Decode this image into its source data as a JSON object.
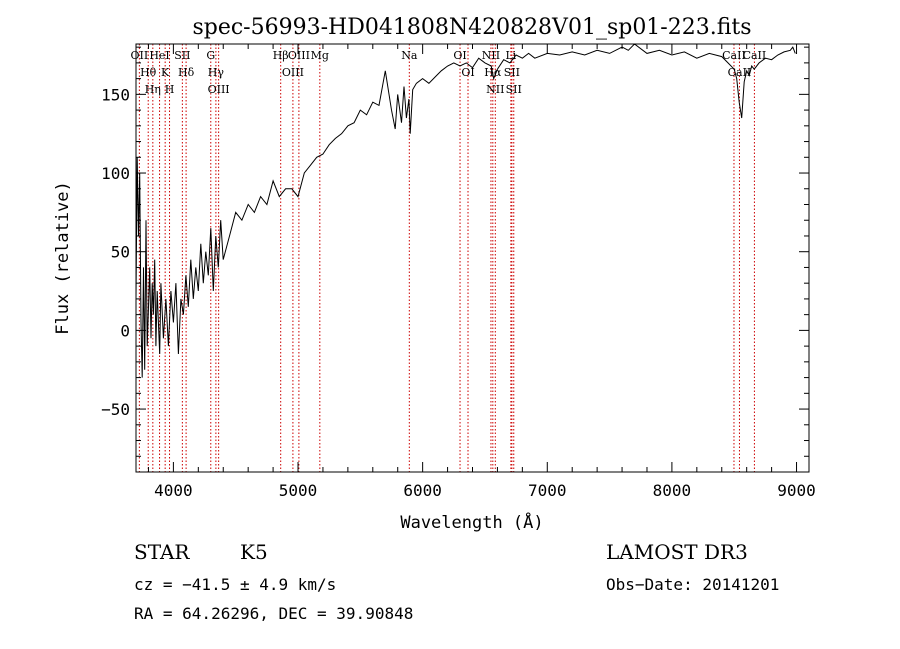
{
  "chart_data": {
    "type": "line",
    "title": "spec-56993-HD041808N420828V01_sp01-223.fits",
    "xlabel": "Wavelength (Å)",
    "ylabel": "Flux (relative)",
    "xlim": [
      3700,
      9100
    ],
    "ylim": [
      -90,
      182
    ],
    "xticks": [
      4000,
      5000,
      6000,
      7000,
      8000,
      9000
    ],
    "yticks": [
      -50,
      0,
      50,
      100,
      150
    ],
    "grid": false,
    "line_color": "#000000",
    "marker_color": "#cc0000",
    "series": [
      {
        "x": [
          3700,
          3710,
          3720,
          3730,
          3740,
          3750,
          3760,
          3770,
          3780,
          3790,
          3800,
          3810,
          3820,
          3830,
          3840,
          3850,
          3860,
          3870,
          3880,
          3890,
          3900,
          3920,
          3940,
          3960,
          3980,
          4000,
          4020,
          4040,
          4060,
          4080,
          4100,
          4120,
          4140,
          4160,
          4180,
          4200,
          4220,
          4240,
          4260,
          4280,
          4300,
          4320,
          4340,
          4360,
          4380,
          4400,
          4450,
          4500,
          4550,
          4600,
          4650,
          4700,
          4750,
          4800,
          4850,
          4900,
          4950,
          5000,
          5050,
          5100,
          5150,
          5200,
          5250,
          5300,
          5350,
          5400,
          5450,
          5500,
          5550,
          5600,
          5650,
          5700,
          5750,
          5780,
          5800,
          5830,
          5850,
          5870,
          5890,
          5900,
          5920,
          5950,
          6000,
          6050,
          6100,
          6150,
          6200,
          6250,
          6300,
          6350,
          6400,
          6450,
          6500,
          6550,
          6570,
          6600,
          6650,
          6700,
          6750,
          6800,
          6850,
          6900,
          7000,
          7100,
          7200,
          7300,
          7400,
          7500,
          7600,
          7650,
          7700,
          7800,
          7900,
          8000,
          8100,
          8200,
          8300,
          8400,
          8450,
          8500,
          8520,
          8540,
          8560,
          8580,
          8600,
          8620,
          8640,
          8660,
          8700,
          8750,
          8800,
          8850,
          8900,
          8950,
          8970,
          8990
        ],
        "y": [
          20,
          110,
          60,
          100,
          5,
          -30,
          40,
          -25,
          70,
          -10,
          15,
          40,
          -5,
          30,
          10,
          45,
          -10,
          25,
          5,
          -15,
          30,
          -5,
          20,
          -10,
          25,
          5,
          30,
          -15,
          20,
          10,
          35,
          15,
          45,
          20,
          40,
          25,
          55,
          30,
          50,
          35,
          65,
          25,
          60,
          40,
          70,
          45,
          60,
          75,
          70,
          80,
          75,
          85,
          80,
          95,
          85,
          90,
          90,
          85,
          100,
          105,
          110,
          112,
          118,
          122,
          125,
          130,
          132,
          140,
          137,
          145,
          143,
          165,
          140,
          128,
          150,
          132,
          155,
          135,
          147,
          125,
          153,
          157,
          160,
          157,
          161,
          165,
          168,
          170,
          168,
          170,
          167,
          173,
          170,
          168,
          160,
          166,
          172,
          170,
          175,
          173,
          176,
          173,
          176,
          175,
          177,
          175,
          178,
          176,
          180,
          178,
          182,
          176,
          178,
          175,
          177,
          173,
          176,
          174,
          170,
          166,
          160,
          145,
          135,
          158,
          165,
          162,
          168,
          166,
          170,
          173,
          172,
          175,
          177,
          178,
          180,
          176
        ]
      }
    ],
    "lines": [
      {
        "name": "Hθ",
        "x": 3798
      },
      {
        "name": "OII",
        "x": 3727
      },
      {
        "name": "Hη",
        "x": 3835
      },
      {
        "name": "HeI",
        "x": 3889
      },
      {
        "name": "K",
        "x": 3934
      },
      {
        "name": "H",
        "x": 3969
      },
      {
        "name": "SII",
        "x": 4072
      },
      {
        "name": "Hδ",
        "x": 4102
      },
      {
        "name": "Hγ",
        "x": 4341
      },
      {
        "name": "OIII",
        "x": 4363
      },
      {
        "name": "G",
        "x": 4300
      },
      {
        "name": "Hβ",
        "x": 4861
      },
      {
        "name": "OIII",
        "x": 4959
      },
      {
        "name": "OIII",
        "x": 5007
      },
      {
        "name": "Mg",
        "x": 5175
      },
      {
        "name": "Na",
        "x": 5893
      },
      {
        "name": "OI",
        "x": 6300
      },
      {
        "name": "OI",
        "x": 6364
      },
      {
        "name": "NII",
        "x": 6548
      },
      {
        "name": "Hα",
        "x": 6563
      },
      {
        "name": "NII",
        "x": 6583
      },
      {
        "name": "Li",
        "x": 6708
      },
      {
        "name": "SII",
        "x": 6716
      },
      {
        "name": "SII",
        "x": 6731
      },
      {
        "name": "CaII",
        "x": 8498
      },
      {
        "name": "CaII",
        "x": 8542
      },
      {
        "name": "CaII",
        "x": 8662
      }
    ]
  },
  "info": {
    "class": "STAR",
    "subclass": "K5",
    "survey": "LAMOST DR3",
    "cz": "cz = −41.5 ± 4.9 km/s",
    "obs_date": "Obs−Date: 20141201",
    "radec": "RA =  64.26296, DEC =  39.90848"
  }
}
